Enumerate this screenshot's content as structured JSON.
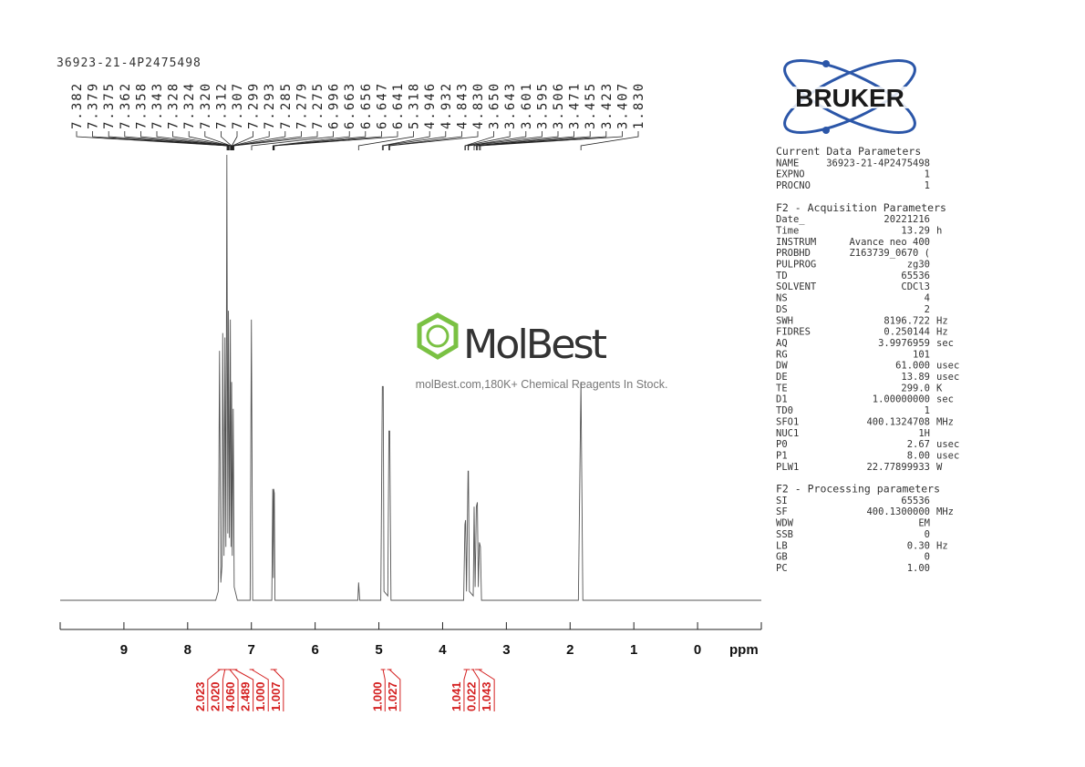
{
  "chart_data": {
    "type": "line",
    "title": "36923-21-4P2475498",
    "x_label": "ppm",
    "xlim": [
      10,
      -1
    ],
    "xticks": [
      9,
      8,
      7,
      6,
      5,
      4,
      3,
      2,
      1,
      0
    ],
    "ylim": [
      0,
      100
    ],
    "color": "#555555",
    "x": [
      10,
      7.56,
      7.52,
      7.5,
      7.48,
      7.46,
      7.45,
      7.43,
      7.415,
      7.4,
      7.385,
      7.37,
      7.36,
      7.345,
      7.33,
      7.32,
      7.31,
      7.3,
      7.285,
      7.27,
      7.22,
      7.02,
      7.0,
      6.98,
      6.68,
      6.665,
      6.655,
      6.65,
      6.64,
      6.63,
      5.33,
      5.318,
      5.3,
      4.97,
      4.946,
      4.932,
      4.92,
      4.86,
      4.843,
      4.83,
      4.81,
      3.67,
      3.65,
      3.64,
      3.625,
      3.601,
      3.595,
      3.58,
      3.52,
      3.506,
      3.49,
      3.471,
      3.455,
      3.44,
      3.423,
      3.407,
      3.39,
      1.87,
      1.83,
      1.8,
      -1
    ],
    "values": [
      0,
      0,
      2,
      56,
      4,
      8,
      60,
      10,
      59,
      12,
      100,
      15,
      65,
      14,
      63,
      12,
      49,
      10,
      43,
      3,
      0,
      0,
      63,
      0,
      0,
      25,
      5,
      25,
      24,
      0,
      0,
      4,
      0,
      0,
      48,
      48,
      2,
      1,
      38,
      38,
      0,
      0,
      17,
      18,
      2,
      29,
      29,
      2,
      1,
      21,
      3,
      21,
      22,
      3,
      13,
      12,
      0,
      0,
      49,
      0,
      0
    ],
    "peaks": [
      {
        "value": 7.382,
        "label": "7.382"
      },
      {
        "value": 7.379,
        "label": "7.379"
      },
      {
        "value": 7.375,
        "label": "7.375"
      },
      {
        "value": 7.362,
        "label": "7.362"
      },
      {
        "value": 7.358,
        "label": "7.358"
      },
      {
        "value": 7.343,
        "label": "7.343"
      },
      {
        "value": 7.328,
        "label": "7.328"
      },
      {
        "value": 7.324,
        "label": "7.324"
      },
      {
        "value": 7.32,
        "label": "7.320"
      },
      {
        "value": 7.312,
        "label": "7.312"
      },
      {
        "value": 7.307,
        "label": "7.307"
      },
      {
        "value": 7.299,
        "label": "7.299"
      },
      {
        "value": 7.293,
        "label": "7.293"
      },
      {
        "value": 7.285,
        "label": "7.285"
      },
      {
        "value": 7.279,
        "label": "7.279"
      },
      {
        "value": 7.275,
        "label": "7.275"
      },
      {
        "value": 6.996,
        "label": "6.996"
      },
      {
        "value": 6.663,
        "label": "6.663"
      },
      {
        "value": 6.656,
        "label": "6.656"
      },
      {
        "value": 6.647,
        "label": "6.647"
      },
      {
        "value": 6.641,
        "label": "6.641"
      },
      {
        "value": 5.318,
        "label": "5.318"
      },
      {
        "value": 4.946,
        "label": "4.946"
      },
      {
        "value": 4.932,
        "label": "4.932"
      },
      {
        "value": 4.843,
        "label": "4.843"
      },
      {
        "value": 4.83,
        "label": "4.830"
      },
      {
        "value": 3.65,
        "label": "3.650"
      },
      {
        "value": 3.643,
        "label": "3.643"
      },
      {
        "value": 3.601,
        "label": "3.601"
      },
      {
        "value": 3.595,
        "label": "3.595"
      },
      {
        "value": 3.506,
        "label": "3.506"
      },
      {
        "value": 3.471,
        "label": "3.471"
      },
      {
        "value": 3.455,
        "label": "3.455"
      },
      {
        "value": 3.423,
        "label": "3.423"
      },
      {
        "value": 3.407,
        "label": "3.407"
      },
      {
        "value": 1.83,
        "label": "1.830"
      }
    ],
    "integrals": {
      "color": "#d42020",
      "values": [
        2.023,
        2.02,
        4.06,
        2.489,
        1,
        1.007,
        1,
        1.027,
        1.041,
        0.022,
        1.043
      ],
      "value_labels": [
        "2.023",
        "2.020",
        "4.060",
        "2.489",
        "1.000",
        "1.007",
        "1.000",
        "1.027",
        "1.041",
        "0.022",
        "1.043"
      ],
      "ranges": [
        [
          7.53,
          7.45
        ],
        [
          7.45,
          7.38
        ],
        [
          7.38,
          7.3
        ],
        [
          7.3,
          7.22
        ],
        [
          7.03,
          6.96
        ],
        [
          6.7,
          6.6
        ],
        [
          4.97,
          4.9
        ],
        [
          4.87,
          4.8
        ],
        [
          3.67,
          3.57
        ],
        [
          3.55,
          3.5
        ],
        [
          3.49,
          3.38
        ]
      ]
    }
  },
  "logo": "BRUKER",
  "watermark": {
    "brand": "MolBest",
    "tagline": "molBest.com,180K+ Chemical Reagents In Stock."
  },
  "parameters": [
    {
      "title": "Current Data Parameters",
      "rows": [
        {
          "key": "NAME",
          "value": "36923-21-4P2475498"
        },
        {
          "key": "EXPNO",
          "value": "1"
        },
        {
          "key": "PROCNO",
          "value": "1"
        }
      ]
    },
    {
      "title": "F2 - Acquisition Parameters",
      "rows": [
        {
          "key": "Date_",
          "value": "20221216"
        },
        {
          "key": "Time",
          "value": "13.29",
          "unit": "h"
        },
        {
          "key": "INSTRUM",
          "value": "Avance neo 400"
        },
        {
          "key": "PROBHD",
          "value": "Z163739_0670 ("
        },
        {
          "key": "PULPROG",
          "value": "zg30"
        },
        {
          "key": "TD",
          "value": "65536"
        },
        {
          "key": "SOLVENT",
          "value": "CDCl3"
        },
        {
          "key": "NS",
          "value": "4"
        },
        {
          "key": "DS",
          "value": "2"
        },
        {
          "key": "SWH",
          "value": "8196.722",
          "unit": "Hz"
        },
        {
          "key": "FIDRES",
          "value": "0.250144",
          "unit": "Hz"
        },
        {
          "key": "AQ",
          "value": "3.9976959",
          "unit": "sec"
        },
        {
          "key": "RG",
          "value": "101"
        },
        {
          "key": "DW",
          "value": "61.000",
          "unit": "usec"
        },
        {
          "key": "DE",
          "value": "13.89",
          "unit": "usec"
        },
        {
          "key": "TE",
          "value": "299.0",
          "unit": "K"
        },
        {
          "key": "D1",
          "value": "1.00000000",
          "unit": "sec"
        },
        {
          "key": "TD0",
          "value": "1"
        },
        {
          "key": "SFO1",
          "value": "400.1324708",
          "unit": "MHz"
        },
        {
          "key": "NUC1",
          "value": "1H"
        },
        {
          "key": "P0",
          "value": "2.67",
          "unit": "usec"
        },
        {
          "key": "P1",
          "value": "8.00",
          "unit": "usec"
        },
        {
          "key": "PLW1",
          "value": "22.77899933",
          "unit": "W"
        }
      ]
    },
    {
      "title": "F2 - Processing parameters",
      "rows": [
        {
          "key": "SI",
          "value": "65536"
        },
        {
          "key": "SF",
          "value": "400.1300000",
          "unit": "MHz"
        },
        {
          "key": "WDW",
          "value": "EM"
        },
        {
          "key": "SSB",
          "value": "0"
        },
        {
          "key": "LB",
          "value": "0.30",
          "unit": "Hz"
        },
        {
          "key": "GB",
          "value": "0"
        },
        {
          "key": "PC",
          "value": "1.00"
        }
      ]
    }
  ]
}
